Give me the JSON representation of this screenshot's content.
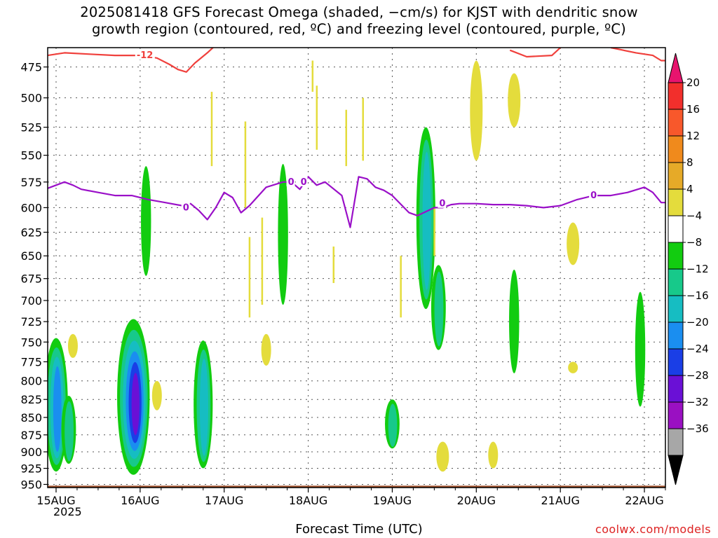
{
  "title": {
    "line1": "2025081418 GFS Forecast Omega (shaded, −cm/s) for KJST with dendritic snow",
    "line2": "growth region (contoured, red, ºC) and freezing level (contoured, purple, ºC)"
  },
  "xaxis_label": "Forecast Time (UTC)",
  "year_label": "2025",
  "credit": "coolwx.com/models",
  "chart_data": {
    "type": "heatmap",
    "title": "2025081418 GFS Forecast Omega (shaded, −cm/s) for KJST with dendritic snow growth region (contoured, red, ºC) and freezing level (contoured, purple, ºC)",
    "xlabel": "Forecast Time (UTC)",
    "ylabel": "",
    "x_ticks": [
      "15AUG",
      "16AUG",
      "17AUG",
      "18AUG",
      "19AUG",
      "20AUG",
      "21AUG",
      "22AUG"
    ],
    "y_ticks": [
      475,
      500,
      525,
      550,
      575,
      600,
      625,
      650,
      675,
      700,
      725,
      750,
      775,
      800,
      825,
      850,
      875,
      900,
      925,
      950
    ],
    "x_range_days": [
      14.9,
      22.25
    ],
    "y_range_hpa": [
      460,
      955
    ],
    "y_scale": "log-pressure",
    "grid": true,
    "colorbar": {
      "labels": [
        "20",
        "16",
        "12",
        "8",
        "4",
        "−4",
        "−8",
        "−12",
        "−16",
        "−20",
        "−24",
        "−28",
        "−32",
        "−36"
      ],
      "colors": [
        "#f22f2c",
        "#f8582b",
        "#f08a1c",
        "#e6aa28",
        "#e4dc3c",
        "#ffffff",
        "#12cc10",
        "#17c98a",
        "#16bdc2",
        "#1a8ef0",
        "#1a3ee6",
        "#6a10d6",
        "#9a10c2",
        "#a7a7a7"
      ],
      "top_arrow_color": "#e8146e",
      "bottom_arrow_color": "#000000"
    },
    "contour_labels": {
      "dgz": "-12",
      "freezing": "0"
    },
    "freezing_level_0C_hpa": {
      "x": [
        14.9,
        15.0,
        15.1,
        15.2,
        15.3,
        15.5,
        15.7,
        15.9,
        16.1,
        16.3,
        16.5,
        16.6,
        16.7,
        16.8,
        16.9,
        17.0,
        17.1,
        17.2,
        17.3,
        17.5,
        17.7,
        17.8,
        17.9,
        18.0,
        18.1,
        18.2,
        18.4,
        18.5,
        18.6,
        18.7,
        18.8,
        18.9,
        19.0,
        19.2,
        19.3,
        19.4,
        19.5,
        19.6,
        19.7,
        19.8,
        20.0,
        20.2,
        20.4,
        20.6,
        20.8,
        21.0,
        21.2,
        21.4,
        21.6,
        21.8,
        22.0,
        22.1,
        22.2,
        22.25
      ],
      "y": [
        581,
        578,
        575,
        578,
        582,
        585,
        588,
        588,
        592,
        595,
        598,
        596,
        603,
        612,
        600,
        585,
        590,
        605,
        598,
        580,
        575,
        575,
        582,
        570,
        578,
        575,
        588,
        620,
        570,
        572,
        580,
        583,
        588,
        605,
        608,
        604,
        600,
        600,
        597,
        596,
        596,
        597,
        597,
        598,
        600,
        598,
        592,
        588,
        588,
        585,
        580,
        585,
        595,
        595
      ]
    },
    "dgz_minus12C_hpa": {
      "x": [
        14.9,
        15.1,
        15.4,
        15.7,
        16.0,
        16.2,
        16.35,
        16.45,
        16.55,
        16.65,
        16.8,
        16.9,
        17.0
      ],
      "y": [
        466,
        464,
        465,
        466,
        466,
        468,
        473,
        477,
        479,
        472,
        464,
        458,
        455
      ],
      "x2": [
        20.4,
        20.6,
        20.9,
        21.0
      ],
      "y2": [
        462,
        467,
        466,
        460
      ],
      "x3": [
        21.6,
        21.9,
        22.1,
        22.2,
        22.25
      ],
      "y3": [
        460,
        464,
        466,
        470,
        470
      ]
    },
    "omega_cells": [
      {
        "t": 15.0,
        "p0": 745,
        "p1": 930,
        "min": -18
      },
      {
        "t": 15.15,
        "p0": 820,
        "p1": 918,
        "min": -8
      },
      {
        "t": 15.92,
        "p0": 722,
        "p1": 935,
        "min": -24
      },
      {
        "t": 16.07,
        "p0": 560,
        "p1": 672,
        "min": -6
      },
      {
        "t": 16.75,
        "p0": 748,
        "p1": 925,
        "min": -14
      },
      {
        "t": 17.7,
        "p0": 558,
        "p1": 705,
        "min": -7
      },
      {
        "t": 19.0,
        "p0": 825,
        "p1": 895,
        "min": -9
      },
      {
        "t": 19.4,
        "p0": 525,
        "p1": 710,
        "min": -14
      },
      {
        "t": 19.55,
        "p0": 660,
        "p1": 760,
        "min": -10
      },
      {
        "t": 20.45,
        "p0": 665,
        "p1": 790,
        "min": -7
      },
      {
        "t": 21.95,
        "p0": 690,
        "p1": 835,
        "min": -7
      },
      {
        "t": 19.6,
        "p0": 885,
        "p1": 930,
        "min": 5
      },
      {
        "t": 20.2,
        "p0": 885,
        "p1": 925,
        "min": 5
      },
      {
        "t": 20.0,
        "p0": 470,
        "p1": 555,
        "min": 5
      },
      {
        "t": 20.45,
        "p0": 480,
        "p1": 525,
        "min": 5
      },
      {
        "t": 21.15,
        "p0": 615,
        "p1": 660,
        "min": 5
      },
      {
        "t": 21.15,
        "p0": 775,
        "p1": 790,
        "min": 5
      },
      {
        "t": 15.2,
        "p0": 740,
        "p1": 770,
        "min": 5
      },
      {
        "t": 16.2,
        "p0": 800,
        "p1": 840,
        "min": 5
      },
      {
        "t": 17.5,
        "p0": 740,
        "p1": 780,
        "min": 5
      }
    ],
    "surface_pressure_hpa": 952
  }
}
